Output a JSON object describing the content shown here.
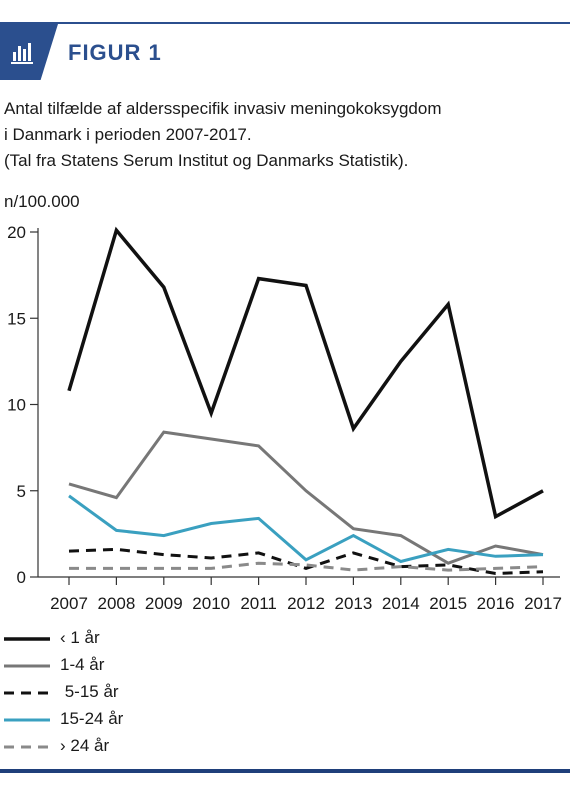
{
  "header": {
    "figure_label": "FIGUR 1",
    "icon": "bar-chart-icon"
  },
  "caption": {
    "line1": "Antal tilfælde af aldersspecifik invasiv meningokoksygdom",
    "line2": "i Danmark i perioden 2007-2017.",
    "line3": "(Tal fra Statens Serum Institut og Danmarks Statistik)."
  },
  "chart_data": {
    "type": "line",
    "title": "",
    "xlabel": "",
    "ylabel": "n/100.000",
    "x": [
      "2007",
      "2008",
      "2009",
      "2010",
      "2011",
      "2012",
      "2013",
      "2014",
      "2015",
      "2016",
      "2017"
    ],
    "ylim": [
      0,
      20
    ],
    "yticks": [
      "0",
      "5",
      "10",
      "15",
      "20"
    ],
    "grid": false,
    "legend_position": "bottom",
    "series": [
      {
        "name": "‹ 1 år",
        "color": "#111111",
        "style": "solid",
        "width": 3.5,
        "values": [
          10.8,
          20.1,
          16.8,
          9.5,
          17.3,
          16.9,
          8.6,
          12.5,
          15.8,
          3.5,
          5.0
        ]
      },
      {
        "name": "1-4 år",
        "color": "#777777",
        "style": "solid",
        "width": 3,
        "values": [
          5.4,
          4.6,
          8.4,
          8.0,
          7.6,
          5.0,
          2.8,
          2.4,
          0.8,
          1.8,
          1.3
        ]
      },
      {
        "name": " 5-15 år",
        "color": "#111111",
        "style": "dash",
        "width": 3,
        "values": [
          1.5,
          1.6,
          1.3,
          1.1,
          1.4,
          0.5,
          1.4,
          0.6,
          0.7,
          0.2,
          0.3
        ]
      },
      {
        "name": "15-24 år",
        "color": "#3aa0c0",
        "style": "solid",
        "width": 3,
        "values": [
          4.7,
          2.7,
          2.4,
          3.1,
          3.4,
          1.0,
          2.4,
          0.9,
          1.6,
          1.2,
          1.3
        ]
      },
      {
        "name": "› 24 år",
        "color": "#8a8a8a",
        "style": "dash",
        "width": 3,
        "values": [
          0.5,
          0.5,
          0.5,
          0.5,
          0.8,
          0.7,
          0.4,
          0.6,
          0.4,
          0.5,
          0.6
        ]
      }
    ]
  }
}
